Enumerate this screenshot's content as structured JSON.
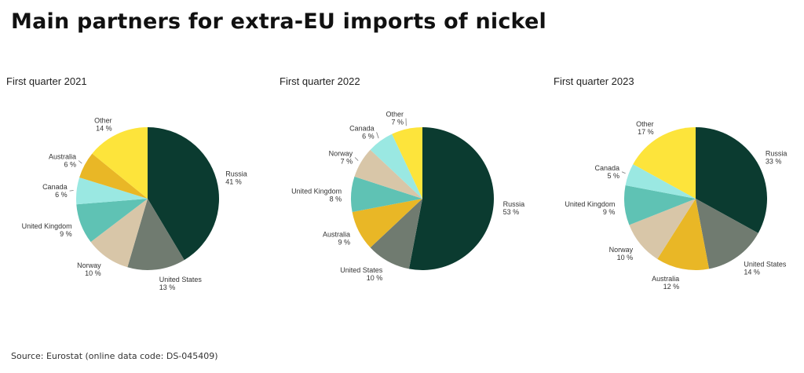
{
  "title": "Main partners for extra-EU imports of nickel",
  "source": "Source: Eurostat (online data code: DS-045409)",
  "colors": {
    "Russia": "#0b3b30",
    "United States": "#707b70",
    "Norway": "#d8c6a8",
    "United Kingdom": "#5fc2b4",
    "Canada": "#9ae8e2",
    "Australia": "#e9b726",
    "Other": "#fde43b"
  },
  "chart_data": [
    {
      "type": "pie",
      "title": "First quarter 2021",
      "slices": [
        {
          "label": "Russia",
          "value": 41,
          "value_label": "41 %"
        },
        {
          "label": "United States",
          "value": 13,
          "value_label": "13 %"
        },
        {
          "label": "Norway",
          "value": 10,
          "value_label": "10 %"
        },
        {
          "label": "United Kingdom",
          "value": 9,
          "value_label": "9 %"
        },
        {
          "label": "Canada",
          "value": 6,
          "value_label": "6 %"
        },
        {
          "label": "Australia",
          "value": 6,
          "value_label": "6 %"
        },
        {
          "label": "Other",
          "value": 14,
          "value_label": "14 %"
        }
      ]
    },
    {
      "type": "pie",
      "title": "First quarter 2022",
      "slices": [
        {
          "label": "Russia",
          "value": 53,
          "value_label": "53 %"
        },
        {
          "label": "United States",
          "value": 10,
          "value_label": "10 %"
        },
        {
          "label": "Australia",
          "value": 9,
          "value_label": "9 %"
        },
        {
          "label": "United Kingdom",
          "value": 8,
          "value_label": "8 %"
        },
        {
          "label": "Norway",
          "value": 7,
          "value_label": "7 %"
        },
        {
          "label": "Canada",
          "value": 6,
          "value_label": "6 %"
        },
        {
          "label": "Other",
          "value": 7,
          "value_label": "7 %"
        }
      ]
    },
    {
      "type": "pie",
      "title": "First quarter 2023",
      "slices": [
        {
          "label": "Russia",
          "value": 33,
          "value_label": "33 %"
        },
        {
          "label": "United States",
          "value": 14,
          "value_label": "14 %"
        },
        {
          "label": "Australia",
          "value": 12,
          "value_label": "12 %"
        },
        {
          "label": "Norway",
          "value": 10,
          "value_label": "10 %"
        },
        {
          "label": "United Kingdom",
          "value": 9,
          "value_label": "9 %"
        },
        {
          "label": "Canada",
          "value": 5,
          "value_label": "5 %"
        },
        {
          "label": "Other",
          "value": 17,
          "value_label": "17 %"
        }
      ]
    }
  ]
}
